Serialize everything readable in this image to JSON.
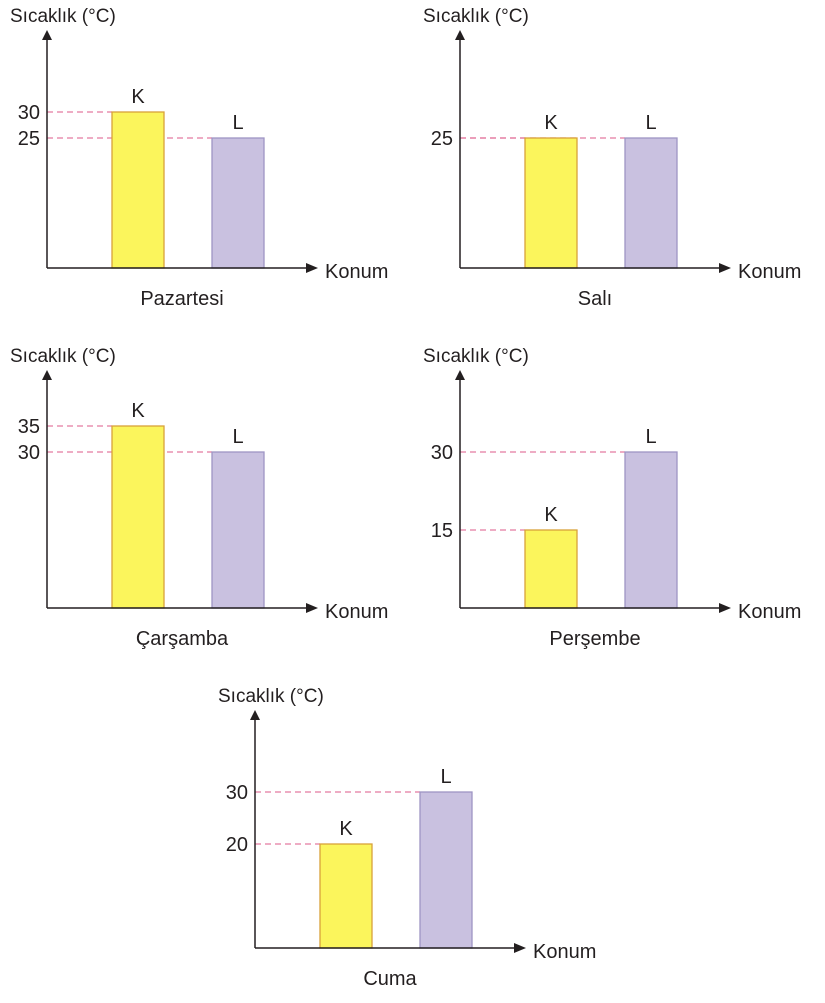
{
  "chart_data": [
    {
      "type": "bar",
      "title": "Pazartesi",
      "ylabel": "Sıcaklık (°C)",
      "xlabel": "Konum",
      "categories": [
        "K",
        "L"
      ],
      "values": [
        30,
        25
      ],
      "yticks": [
        25,
        30
      ],
      "grid": "dashed reference lines at bar tops"
    },
    {
      "type": "bar",
      "title": "Salı",
      "ylabel": "Sıcaklık (°C)",
      "xlabel": "Konum",
      "categories": [
        "K",
        "L"
      ],
      "values": [
        25,
        25
      ],
      "yticks": [
        25
      ],
      "grid": "dashed reference lines at bar tops"
    },
    {
      "type": "bar",
      "title": "Çarşamba",
      "ylabel": "Sıcaklık (°C)",
      "xlabel": "Konum",
      "categories": [
        "K",
        "L"
      ],
      "values": [
        35,
        30
      ],
      "yticks": [
        30,
        35
      ],
      "grid": "dashed reference lines at bar tops"
    },
    {
      "type": "bar",
      "title": "Perşembe",
      "ylabel": "Sıcaklık (°C)",
      "xlabel": "Konum",
      "categories": [
        "K",
        "L"
      ],
      "values": [
        15,
        30
      ],
      "yticks": [
        15,
        30
      ],
      "grid": "dashed reference lines at bar tops"
    },
    {
      "type": "bar",
      "title": "Cuma",
      "ylabel": "Sıcaklık (°C)",
      "xlabel": "Konum",
      "categories": [
        "K",
        "L"
      ],
      "values": [
        20,
        30
      ],
      "yticks": [
        20,
        30
      ],
      "grid": "dashed reference lines at bar tops"
    }
  ],
  "colors": {
    "bar_K_fill": "#fbf55c",
    "bar_K_stroke": "#d8a23a",
    "bar_L_fill": "#c9c1e0",
    "bar_L_stroke": "#9e95c4",
    "reference_line": "#e37aa0",
    "axis": "#231f20"
  }
}
